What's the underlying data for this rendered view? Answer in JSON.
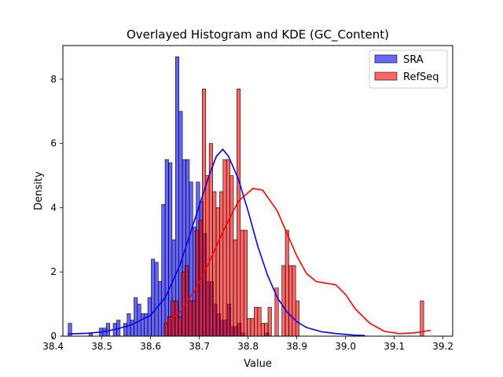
{
  "chart_data": {
    "type": "histogram",
    "title": "Overlayed Histogram and KDE (GC_Content)",
    "xlabel": "Value",
    "ylabel": "Density",
    "xlim": [
      38.42,
      39.22
    ],
    "ylim": [
      0,
      9.05
    ],
    "xticks": [
      38.4,
      38.5,
      38.6,
      38.7,
      38.8,
      38.9,
      39.0,
      39.1,
      39.2
    ],
    "yticks": [
      0,
      2,
      4,
      6,
      8
    ],
    "grid": false,
    "legend_position": "top-right",
    "series": [
      {
        "name": "SRA",
        "color": "#0000ff",
        "bin_width": 0.0071,
        "bin_start": 38.431,
        "heights": [
          0.4,
          0,
          0,
          0,
          0,
          0,
          0.1,
          0,
          0,
          0.25,
          0.25,
          0.4,
          0,
          0.4,
          0.5,
          0,
          0.4,
          0.7,
          0.5,
          1.2,
          1.0,
          0.7,
          0.7,
          1.2,
          2.4,
          2.3,
          1.7,
          4.1,
          5.5,
          5.4,
          3.0,
          8.7,
          7.0,
          5.5,
          5.5,
          4.8,
          3.4,
          4.8,
          4.2,
          3.2,
          1.7,
          1.7,
          1.0,
          0.7,
          0.5,
          0.5,
          1.0,
          0.3,
          0.3,
          0.4,
          0.1,
          0,
          0,
          0,
          0,
          0,
          0,
          0.1
        ],
        "kde": [
          [
            38.43,
            0.07
          ],
          [
            38.47,
            0.09
          ],
          [
            38.5,
            0.13
          ],
          [
            38.53,
            0.22
          ],
          [
            38.56,
            0.35
          ],
          [
            38.6,
            0.65
          ],
          [
            38.63,
            1.2
          ],
          [
            38.66,
            2.2
          ],
          [
            38.69,
            3.6
          ],
          [
            38.72,
            5.0
          ],
          [
            38.735,
            5.6
          ],
          [
            38.748,
            5.82
          ],
          [
            38.76,
            5.6
          ],
          [
            38.78,
            4.9
          ],
          [
            38.8,
            3.9
          ],
          [
            38.82,
            2.8
          ],
          [
            38.84,
            1.9
          ],
          [
            38.86,
            1.2
          ],
          [
            38.88,
            0.75
          ],
          [
            38.9,
            0.45
          ],
          [
            38.92,
            0.27
          ],
          [
            38.95,
            0.14
          ],
          [
            38.98,
            0.08
          ],
          [
            39.02,
            0.03
          ],
          [
            39.04,
            0.02
          ]
        ]
      },
      {
        "name": "RefSeq",
        "color": "#ff0000",
        "bin_width": 0.0071,
        "bin_start": 38.628,
        "heights": [
          0.4,
          0.6,
          1.1,
          1.1,
          0.6,
          2.0,
          2.2,
          1.1,
          1.1,
          3.3,
          3.6,
          7.7,
          5.0,
          6.0,
          4.5,
          4.0,
          4.5,
          5.5,
          5.5,
          5.0,
          3.0,
          7.7,
          3.3,
          3.3,
          0.55,
          0.55,
          0.9,
          0.9,
          0.4,
          0.4,
          0.9,
          0,
          1.5,
          0,
          2.2,
          3.3,
          2.2,
          2.2,
          1.1,
          0,
          0,
          0,
          0,
          0,
          0,
          0,
          0,
          0,
          0,
          0,
          0,
          0,
          0,
          0,
          0,
          0,
          0,
          0,
          0,
          0,
          0,
          0,
          0,
          0,
          0,
          0,
          0,
          0,
          0,
          0,
          0,
          0,
          0,
          0,
          1.1
        ],
        "kde": [
          [
            38.63,
            0.4
          ],
          [
            38.66,
            0.75
          ],
          [
            38.69,
            1.4
          ],
          [
            38.72,
            2.3
          ],
          [
            38.75,
            3.3
          ],
          [
            38.78,
            4.2
          ],
          [
            38.81,
            4.6
          ],
          [
            38.83,
            4.55
          ],
          [
            38.86,
            3.9
          ],
          [
            38.88,
            3.2
          ],
          [
            38.9,
            2.5
          ],
          [
            38.92,
            1.95
          ],
          [
            38.94,
            1.7
          ],
          [
            38.96,
            1.65
          ],
          [
            38.98,
            1.6
          ],
          [
            39.0,
            1.3
          ],
          [
            39.02,
            0.85
          ],
          [
            39.05,
            0.4
          ],
          [
            39.08,
            0.15
          ],
          [
            39.11,
            0.08
          ],
          [
            39.14,
            0.1
          ],
          [
            39.175,
            0.18
          ]
        ]
      }
    ]
  }
}
